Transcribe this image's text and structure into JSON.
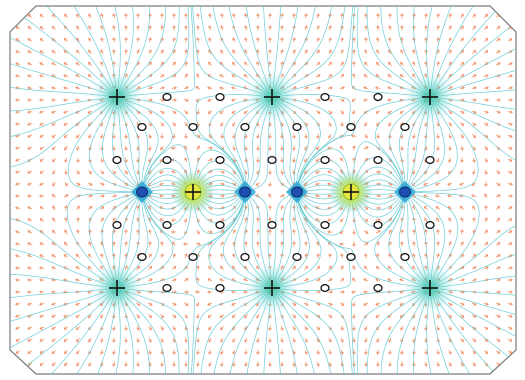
{
  "colors": {
    "background": "#ffffff",
    "frame": "#7a7a7a",
    "field_line": "#5ec8d2",
    "arrow": "#f07a4a",
    "plus_charge_fill": "#e6e640",
    "plus_charge_glow": "#3ec7b2",
    "minus_charge_core": "#1f4fb0",
    "minus_charge_ring": "#2aa6d6",
    "marker_ring": "#111111",
    "cross": "#111111"
  },
  "icons": {
    "positive_charge": "plus-cross-icon",
    "negative_charge": "blue-diamond-icon",
    "zero_point": "ring-marker-icon"
  },
  "diagram": {
    "kind": "electric field map",
    "positive_labeled_sources": 8,
    "blue_sinks": 4,
    "ring_markers": 36
  }
}
